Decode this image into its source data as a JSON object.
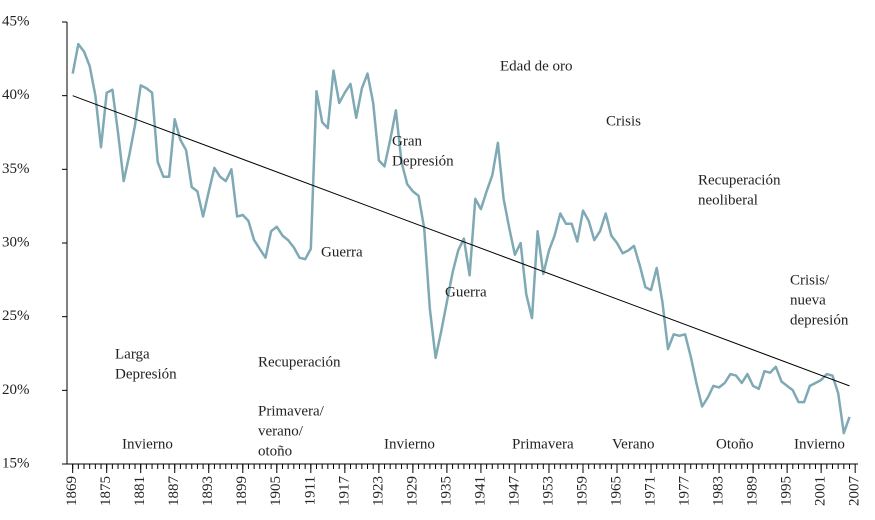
{
  "chart_data": {
    "type": "line",
    "x": [
      1869,
      1870,
      1871,
      1872,
      1873,
      1874,
      1875,
      1876,
      1877,
      1878,
      1879,
      1880,
      1881,
      1882,
      1883,
      1884,
      1885,
      1886,
      1887,
      1888,
      1889,
      1890,
      1891,
      1892,
      1893,
      1894,
      1895,
      1896,
      1897,
      1898,
      1899,
      1900,
      1901,
      1902,
      1903,
      1904,
      1905,
      1906,
      1907,
      1908,
      1909,
      1910,
      1911,
      1912,
      1913,
      1914,
      1915,
      1916,
      1917,
      1918,
      1919,
      1920,
      1921,
      1922,
      1923,
      1924,
      1925,
      1926,
      1927,
      1928,
      1929,
      1930,
      1931,
      1932,
      1933,
      1934,
      1935,
      1936,
      1937,
      1938,
      1939,
      1940,
      1941,
      1942,
      1943,
      1944,
      1945,
      1946,
      1947,
      1948,
      1949,
      1950,
      1951,
      1952,
      1953,
      1954,
      1955,
      1956,
      1957,
      1958,
      1959,
      1960,
      1961,
      1962,
      1963,
      1964,
      1965,
      1966,
      1967,
      1968,
      1969,
      1970,
      1971,
      1972,
      1973,
      1974,
      1975,
      1976,
      1977,
      1978,
      1979,
      1980,
      1981,
      1982,
      1983,
      1984,
      1985,
      1986,
      1987,
      1988,
      1989,
      1990,
      1991,
      1992,
      1993,
      1994,
      1995,
      1996,
      1997,
      1998,
      1999,
      2000,
      2001,
      2002,
      2003,
      2004,
      2005,
      2006
    ],
    "series": [
      {
        "color": "#7fa9b5",
        "values": [
          41.5,
          43.5,
          43,
          42,
          40,
          36.5,
          40.2,
          40.4,
          37.5,
          34.2,
          36,
          38,
          40.7,
          40.5,
          40.2,
          35.5,
          34.5,
          34.5,
          38.4,
          37,
          36.3,
          33.8,
          33.5,
          31.8,
          33.5,
          35.1,
          34.5,
          34.2,
          35,
          31.8,
          31.9,
          31.5,
          30.2,
          29.6,
          29,
          30.8,
          31.1,
          30.5,
          30.2,
          29.7,
          29,
          28.9,
          29.6,
          40.3,
          38.2,
          37.8,
          41.7,
          39.5,
          40.2,
          40.8,
          38.5,
          40.5,
          41.5,
          39.5,
          35.6,
          35.2,
          37,
          39,
          35.5,
          34,
          33.5,
          33.2,
          31,
          25.5,
          22.2,
          24,
          26,
          28,
          29.5,
          30.3,
          27.8,
          33,
          32.3,
          33.5,
          34.6,
          36.8,
          33,
          31,
          29.2,
          30,
          26.5,
          24.9,
          30.8,
          27.9,
          29.5,
          30.5,
          32,
          31.3,
          31.3,
          30.1,
          32.2,
          31.5,
          30.2,
          30.8,
          32,
          30.5,
          30,
          29.3,
          29.5,
          29.8,
          28.5,
          27,
          26.8,
          28.3,
          26,
          22.8,
          23.8,
          23.7,
          23.8,
          22.3,
          20.5,
          18.9,
          19.5,
          20.3,
          20.2,
          20.5,
          21.1,
          21,
          20.5,
          21.1,
          20.3,
          20.1,
          21.3,
          21.2,
          21.6,
          20.6,
          20.3,
          20,
          19.2,
          19.2,
          20.3,
          20.5,
          20.7,
          21.1,
          21,
          19.8,
          17.1,
          18.2
        ]
      }
    ],
    "trend": {
      "color": "#000000",
      "x": [
        1869,
        2006
      ],
      "values": [
        40,
        20.3
      ]
    },
    "xlim": [
      1868,
      2007.5
    ],
    "xticks": [
      1869,
      1875,
      1881,
      1887,
      1893,
      1899,
      1905,
      1911,
      1917,
      1923,
      1929,
      1935,
      1941,
      1947,
      1953,
      1959,
      1965,
      1971,
      1977,
      1983,
      1989,
      1995,
      2001,
      2007
    ],
    "ylim": [
      15,
      45
    ],
    "yticks": [
      {
        "value": 15,
        "label": "15%"
      },
      {
        "value": 20,
        "label": "20%"
      },
      {
        "value": 25,
        "label": "25%"
      },
      {
        "value": 30,
        "label": "30%"
      },
      {
        "value": 35,
        "label": "35%"
      },
      {
        "value": 40,
        "label": "40%"
      },
      {
        "value": 45,
        "label": "45%"
      }
    ],
    "annotations": [
      [
        "Edad de oro"
      ],
      [
        "Crisis"
      ],
      [
        "Gran",
        "Depresión"
      ],
      [
        "Recuperación",
        "neoliberal"
      ],
      [
        "Guerra"
      ],
      [
        "Guerra"
      ],
      [
        "Crisis/",
        "nueva",
        "depresión"
      ],
      [
        "Larga",
        "Depresión"
      ],
      [
        "Recuperación"
      ],
      [
        "Primavera/",
        "verano/",
        "otoño"
      ],
      [
        "Invierno"
      ],
      [
        "Invierno"
      ],
      [
        "Primavera"
      ],
      [
        "Verano"
      ],
      [
        "Otoño"
      ],
      [
        "Invierno"
      ]
    ]
  }
}
